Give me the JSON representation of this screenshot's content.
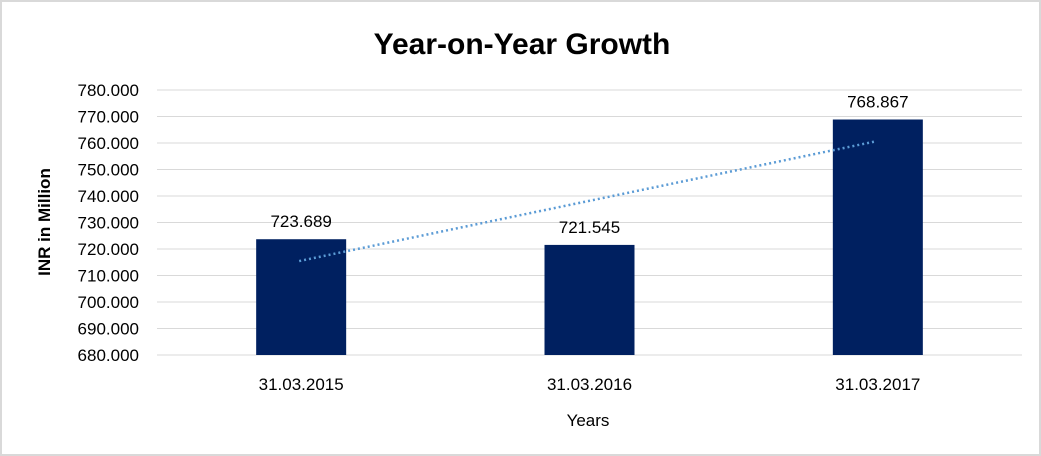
{
  "chart_data": {
    "type": "bar",
    "title": "Year-on-Year Growth",
    "xlabel": "Years",
    "ylabel": "INR in Million",
    "categories": [
      "31.03.2015",
      "31.03.2016",
      "31.03.2017"
    ],
    "values": [
      723.689,
      721.545,
      768.867
    ],
    "data_labels": [
      "723.689",
      "721.545",
      "768.867"
    ],
    "ylim": [
      680,
      780
    ],
    "yticks": [
      "680.000",
      "690.000",
      "700.000",
      "710.000",
      "720.000",
      "730.000",
      "740.000",
      "750.000",
      "760.000",
      "770.000",
      "780.000"
    ],
    "grid": true,
    "trendline": {
      "type": "linear",
      "style": "dotted",
      "color": "#5b9bd5"
    },
    "colors": {
      "bar": "#002060",
      "grid": "#d9d9d9"
    }
  }
}
